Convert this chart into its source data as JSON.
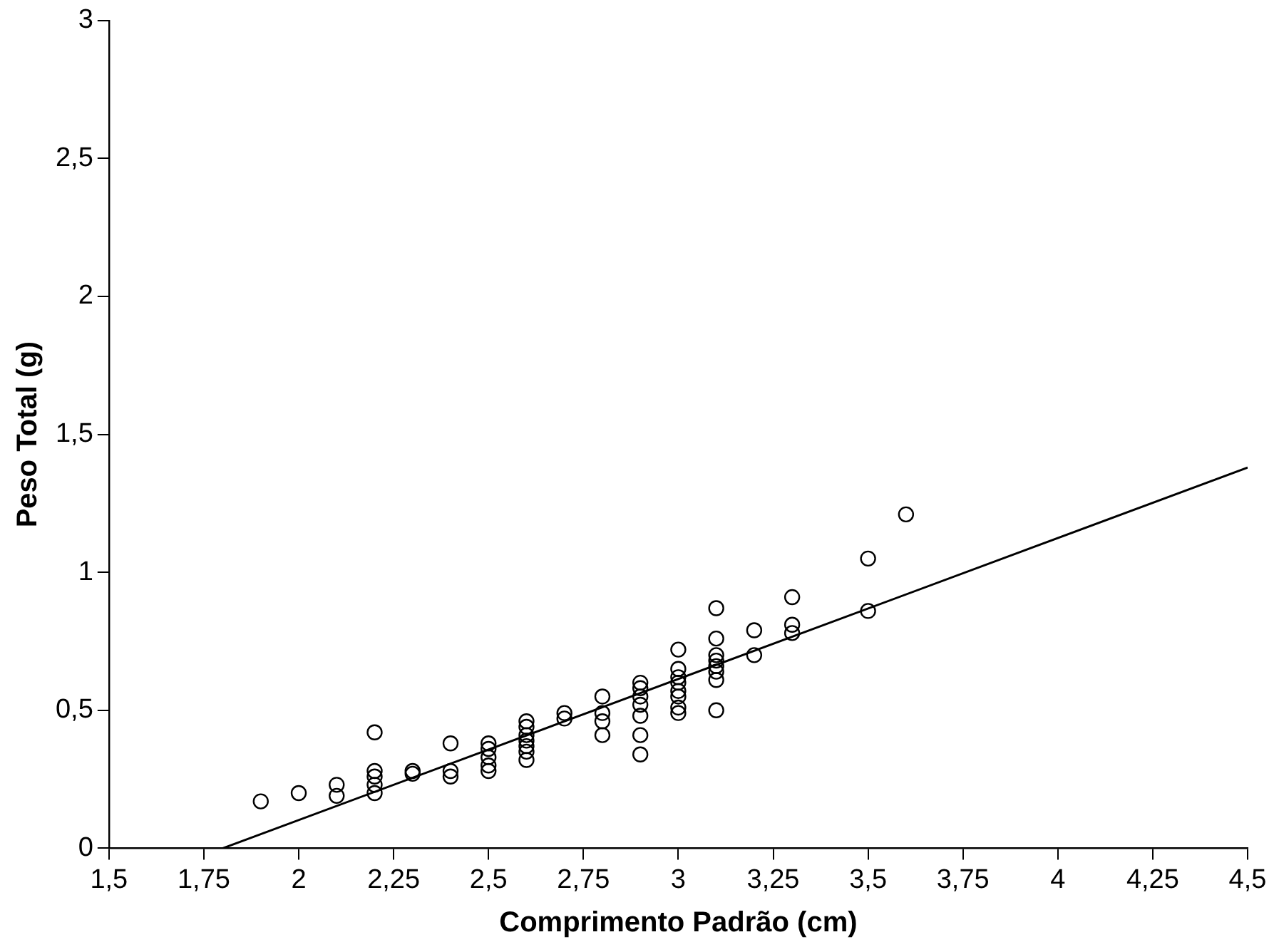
{
  "chart_data": {
    "type": "scatter",
    "xlabel": "Comprimento Padrão (cm)",
    "ylabel": "Peso Total (g)",
    "xlim": [
      1.5,
      4.5
    ],
    "xticks": [
      {
        "value": 1.5,
        "label": "1,5"
      },
      {
        "value": 1.75,
        "label": "1,75"
      },
      2,
      {
        "value": 2.25,
        "label": "2,25"
      },
      {
        "value": 2.5,
        "label": "2,5"
      },
      {
        "value": 2.75,
        "label": "2,75"
      },
      3,
      {
        "value": 3.25,
        "label": "3,25"
      },
      {
        "value": 3.5,
        "label": "3,5"
      },
      {
        "value": 3.75,
        "label": "3,75"
      },
      4,
      {
        "value": 4.25,
        "label": "4,25"
      },
      {
        "value": 4.5,
        "label": "4,5"
      }
    ],
    "ylim": [
      0,
      3
    ],
    "yticks": [
      0,
      {
        "value": 0.5,
        "label": "0,5"
      },
      1,
      {
        "value": 1.5,
        "label": "1,5"
      },
      2,
      {
        "value": 2.5,
        "label": "2,5"
      },
      3
    ],
    "grid": false,
    "legend": false,
    "marker": "circle",
    "series": [
      {
        "type": "scatter",
        "color": "#000000",
        "x": [
          1.9,
          2.0,
          2.1,
          2.1,
          2.2,
          2.2,
          2.2,
          2.2,
          2.2,
          2.3,
          2.3,
          2.4,
          2.4,
          2.4,
          2.5,
          2.5,
          2.5,
          2.5,
          2.5,
          2.6,
          2.6,
          2.6,
          2.6,
          2.6,
          2.6,
          2.6,
          2.7,
          2.7,
          2.8,
          2.8,
          2.8,
          2.8,
          2.9,
          2.9,
          2.9,
          2.9,
          2.9,
          2.9,
          2.9,
          3.0,
          3.0,
          3.0,
          3.0,
          3.0,
          3.0,
          3.0,
          3.0,
          3.1,
          3.1,
          3.1,
          3.1,
          3.1,
          3.1,
          3.1,
          3.1,
          3.2,
          3.2,
          3.3,
          3.3,
          3.3,
          3.5,
          3.5,
          3.6
        ],
        "values": [
          0.17,
          0.2,
          0.23,
          0.19,
          0.42,
          0.28,
          0.26,
          0.23,
          0.2,
          0.28,
          0.27,
          0.38,
          0.28,
          0.26,
          0.38,
          0.36,
          0.33,
          0.3,
          0.28,
          0.46,
          0.44,
          0.41,
          0.39,
          0.37,
          0.35,
          0.32,
          0.49,
          0.47,
          0.55,
          0.49,
          0.46,
          0.41,
          0.6,
          0.58,
          0.55,
          0.52,
          0.48,
          0.41,
          0.34,
          0.72,
          0.65,
          0.62,
          0.6,
          0.57,
          0.55,
          0.51,
          0.49,
          0.87,
          0.76,
          0.7,
          0.68,
          0.66,
          0.64,
          0.61,
          0.5,
          0.79,
          0.7,
          0.91,
          0.81,
          0.78,
          1.05,
          0.86,
          1.21
        ]
      },
      {
        "type": "line",
        "color": "#000000",
        "marker": "none",
        "x": [
          1.8,
          4.5
        ],
        "values": [
          0,
          1.38
        ]
      }
    ]
  }
}
